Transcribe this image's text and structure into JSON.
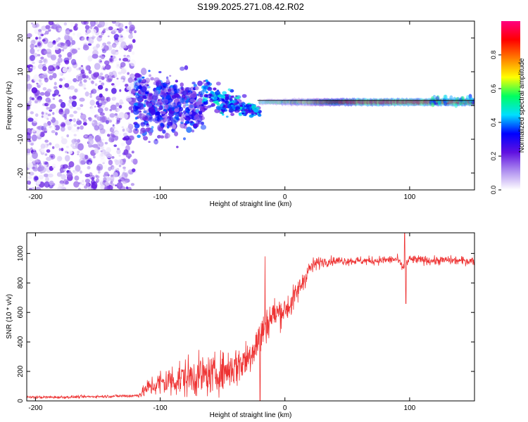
{
  "title": "S199.2025.271.08.42.R02",
  "chart_data": [
    {
      "type": "heatmap",
      "title": "S199.2025.271.08.42.R02",
      "xlabel": "Height of straight line (km)",
      "ylabel": "Frequency (Hz)",
      "xlim": [
        -207,
        152
      ],
      "ylim": [
        -25,
        25
      ],
      "xticks": [
        -200,
        -100,
        0,
        100
      ],
      "xtick_labels": [
        "-200",
        "-100",
        "0",
        "100"
      ],
      "yticks": [
        -20,
        -10,
        0,
        10,
        20
      ],
      "ytick_labels": [
        "-20",
        "-10",
        "0",
        "10",
        "20"
      ],
      "regions": [
        {
          "name": "noise",
          "x_range": [
            -207,
            -120
          ],
          "f_range": [
            -25,
            25
          ],
          "amplitude": [
            0.0,
            0.25
          ]
        },
        {
          "name": "transition-cloud",
          "x_range": [
            -120,
            -65
          ],
          "f_range": [
            -13,
            13
          ],
          "amplitude": [
            0.1,
            0.4
          ]
        },
        {
          "name": "converging-trace",
          "x_range": [
            -65,
            -20
          ],
          "f_center": [
            3,
            -2
          ],
          "amplitude": [
            0.2,
            0.5
          ]
        },
        {
          "name": "stable-trace",
          "x_range": [
            -20,
            152
          ],
          "f_center": [
            1,
            1
          ],
          "amplitude": [
            0.5,
            1.0
          ]
        }
      ],
      "trace_line_hz": 1.5,
      "colorbar": {
        "label": "Normalized spectral amplitude",
        "range": [
          0.0,
          1.0
        ],
        "ticks": [
          0.0,
          0.2,
          0.4,
          0.6,
          0.8
        ],
        "tick_labels": [
          "0.0",
          "0.2",
          "0.4",
          "0.6",
          "0.8"
        ],
        "colors": [
          "#ffffff",
          "#b090f0",
          "#6010e0",
          "#0000ff",
          "#00dfff",
          "#00ff60",
          "#ffff00",
          "#ff7f00",
          "#ff0000",
          "#ff0080"
        ]
      }
    },
    {
      "type": "line",
      "xlabel": "Height of straight line (km)",
      "ylabel": "SNR (10 * v/v)",
      "xlim": [
        -207,
        152
      ],
      "ylim": [
        0,
        1140
      ],
      "xticks": [
        -200,
        -100,
        0,
        100
      ],
      "xtick_labels": [
        "-200",
        "-100",
        "0",
        "100"
      ],
      "yticks": [
        0,
        200,
        400,
        600,
        800,
        1000
      ],
      "ytick_labels": [
        "0",
        "200",
        "400",
        "600",
        "800",
        "1000"
      ],
      "color": "#ee3333",
      "series": [
        {
          "name": "SNR",
          "x": [
            -207,
            -180,
            -150,
            -120,
            -115,
            -110,
            -100,
            -90,
            -80,
            -70,
            -60,
            -50,
            -40,
            -30,
            -25,
            -20,
            -15,
            -10,
            -5,
            0,
            5,
            10,
            15,
            20,
            25,
            30,
            40,
            50,
            60,
            70,
            80,
            90,
            95,
            100,
            110,
            120,
            130,
            140,
            152
          ],
          "y": [
            25,
            25,
            30,
            35,
            50,
            90,
            120,
            140,
            160,
            170,
            170,
            200,
            230,
            290,
            360,
            430,
            520,
            580,
            600,
            620,
            660,
            740,
            820,
            900,
            930,
            945,
            950,
            950,
            950,
            950,
            955,
            960,
            900,
            960,
            955,
            950,
            955,
            950,
            950
          ],
          "noise": [
            8,
            8,
            8,
            10,
            25,
            50,
            80,
            100,
            110,
            120,
            110,
            110,
            120,
            120,
            110,
            120,
            100,
            100,
            90,
            80,
            80,
            70,
            60,
            50,
            40,
            30,
            25,
            25,
            25,
            25,
            25,
            25,
            25,
            25,
            25,
            25,
            25,
            25,
            25
          ]
        }
      ],
      "spikes": [
        {
          "x": -16,
          "y": 980
        },
        {
          "x": -20,
          "y": 0
        },
        {
          "x": 96,
          "y": 1140
        },
        {
          "x": 97,
          "y": 660
        }
      ]
    }
  ]
}
